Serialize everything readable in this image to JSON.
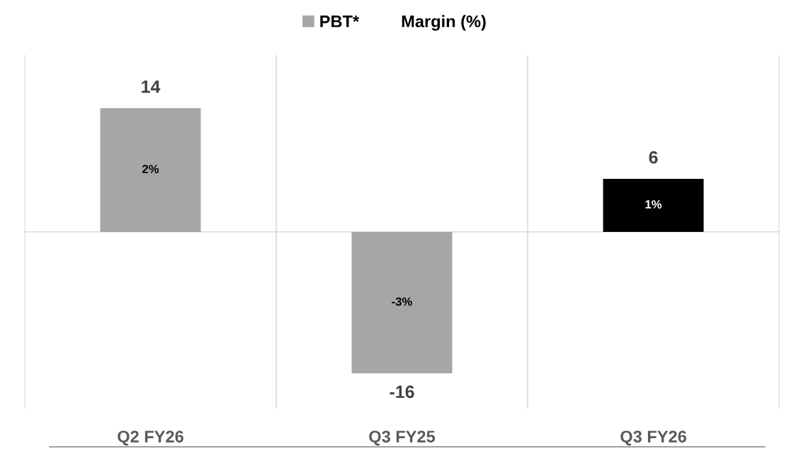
{
  "chart_data": {
    "type": "bar",
    "categories": [
      "Q2 FY26",
      "Q3 FY25",
      "Q3 FY26"
    ],
    "series": [
      {
        "name": "PBT*",
        "color": "#a6a6a6",
        "colors": [
          "#a6a6a6",
          "#a6a6a6",
          "#000000"
        ],
        "values": [
          14,
          -16,
          6
        ]
      },
      {
        "name": "Margin (%)",
        "values": [
          null,
          null,
          null
        ]
      }
    ],
    "annotations": [
      "2%",
      "-3%",
      "1%"
    ],
    "data_labels": true,
    "ylim": [
      -20,
      20
    ],
    "tick_labels": "x",
    "grid": "x",
    "legend": "top"
  }
}
